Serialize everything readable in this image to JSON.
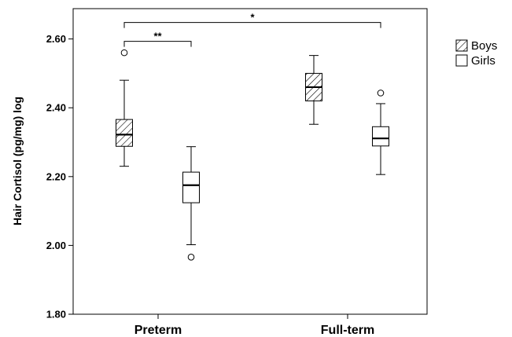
{
  "chart_data": {
    "type": "box",
    "title": "",
    "xlabel": "",
    "ylabel": "Hair Cortisol (pg/mg) log",
    "ylim": [
      1.8,
      2.68
    ],
    "yticks": [
      1.8,
      2.0,
      2.2,
      2.4,
      2.6
    ],
    "ytick_labels": [
      "1.80",
      "2.00",
      "2.20",
      "2.40",
      "2.60"
    ],
    "categories": [
      "Preterm",
      "Full-term"
    ],
    "legend_position": "right",
    "series": [
      {
        "name": "Boys",
        "pattern": "hatched",
        "boxes": [
          {
            "category": "Preterm",
            "whisker_low": 2.23,
            "q1": 2.288,
            "median": 2.322,
            "q3": 2.366,
            "whisker_high": 2.48,
            "outliers": [
              2.56
            ]
          },
          {
            "category": "Full-term",
            "whisker_low": 2.352,
            "q1": 2.42,
            "median": 2.46,
            "q3": 2.5,
            "whisker_high": 2.552,
            "outliers": []
          }
        ]
      },
      {
        "name": "Girls",
        "pattern": "plain",
        "boxes": [
          {
            "category": "Preterm",
            "whisker_low": 2.002,
            "q1": 2.124,
            "median": 2.175,
            "q3": 2.213,
            "whisker_high": 2.287,
            "outliers": [
              1.966
            ]
          },
          {
            "category": "Full-term",
            "whisker_low": 2.206,
            "q1": 2.289,
            "median": 2.311,
            "q3": 2.345,
            "whisker_high": 2.412,
            "outliers": [
              2.443
            ]
          }
        ]
      }
    ],
    "significance": [
      {
        "label": "**",
        "from": "Preterm Boys",
        "to": "Preterm Girls",
        "y": 2.593
      },
      {
        "label": "*",
        "from": "Preterm Boys",
        "to": "Full-term Girls",
        "y": 2.648
      }
    ]
  }
}
